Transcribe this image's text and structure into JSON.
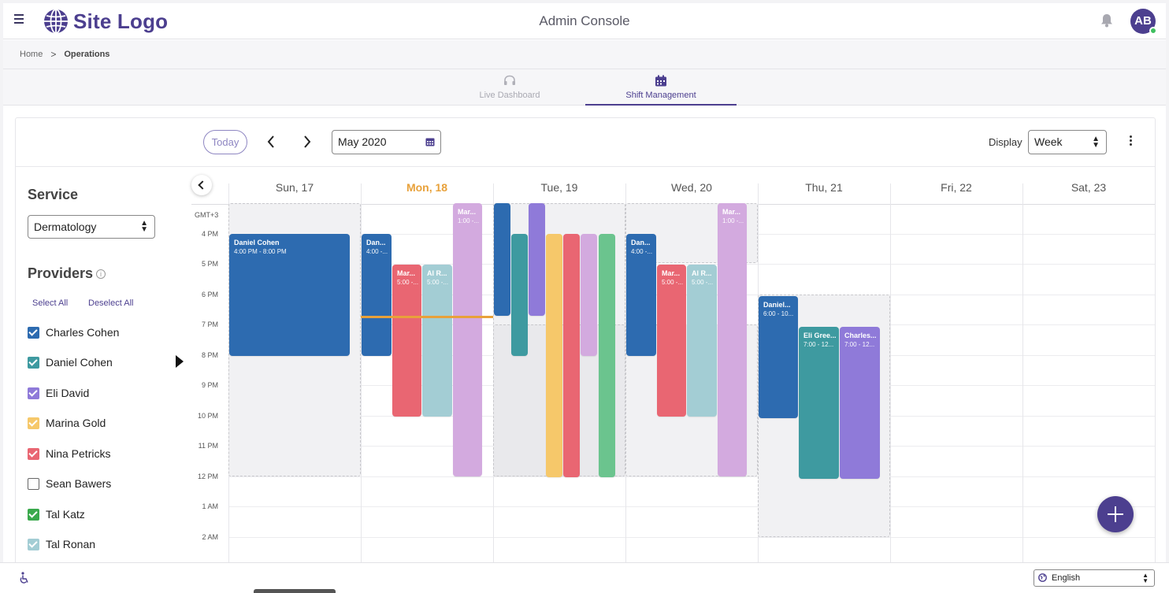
{
  "header": {
    "logo_text": "Site Logo",
    "title": "Admin Console",
    "avatar_initials": "AB",
    "icons": [
      "menu-icon",
      "globe-icon",
      "bell-icon"
    ]
  },
  "breadcrumb": {
    "home": "Home",
    "separator": ">",
    "current": "Operations"
  },
  "tabs": [
    {
      "label": "Live Dashboard",
      "icon": "headset-icon",
      "active": false
    },
    {
      "label": "Shift Management",
      "icon": "calendar-icon",
      "active": true
    }
  ],
  "toolbar": {
    "today_label": "Today",
    "date_value": "May 2020",
    "display_label": "Display",
    "display_value": "Week"
  },
  "sidebar": {
    "service_heading": "Service",
    "service_value": "Dermatology",
    "providers_heading": "Providers",
    "select_all": "Select All",
    "deselect_all": "Deselect All",
    "providers": [
      {
        "name": "Charles Cohen",
        "color": "#2d6bb0",
        "checked": true
      },
      {
        "name": "Daniel Cohen",
        "color": "#3e9aa0",
        "checked": true
      },
      {
        "name": "Eli David",
        "color": "#8f7ad9",
        "checked": true
      },
      {
        "name": "Marina Gold",
        "color": "#f6c86a",
        "checked": true
      },
      {
        "name": "Nina Petricks",
        "color": "#e96672",
        "checked": true
      },
      {
        "name": "Sean Bawers",
        "color": "#ffffff",
        "checked": false
      },
      {
        "name": "Tal Katz",
        "color": "#3aa94c",
        "checked": true
      },
      {
        "name": "Tal Ronan",
        "color": "#a3cdd4",
        "checked": true
      }
    ]
  },
  "calendar": {
    "timezone": "GMT+3",
    "days": [
      {
        "label": "Sun, 17",
        "today": false
      },
      {
        "label": "Mon, 18",
        "today": true
      },
      {
        "label": "Tue, 19",
        "today": false
      },
      {
        "label": "Wed, 20",
        "today": false
      },
      {
        "label": "Thu, 21",
        "today": false
      },
      {
        "label": "Fri, 22",
        "today": false
      },
      {
        "label": "Sat, 23",
        "today": false
      }
    ],
    "hours": [
      "4 PM",
      "5 PM",
      "6 PM",
      "7 PM",
      "8 PM",
      "9 PM",
      "10 PM",
      "11 PM",
      "12 PM",
      "1 AM",
      "2 AM"
    ],
    "events": [
      {
        "name": "Daniel Cohen",
        "time": "4:00 PM - 8:00 PM"
      },
      {
        "name": "Dan...",
        "time": "4:00 -..."
      },
      {
        "name": "Mar...",
        "time": "5:00 -..."
      },
      {
        "name": "Al R...",
        "time": "5:00 -..."
      },
      {
        "name": "Mar...",
        "time": "1:00 -..."
      },
      {
        "name": "Dan...",
        "time": "4:00 -..."
      },
      {
        "name": "Mar...",
        "time": "5:00 -..."
      },
      {
        "name": "Al R...",
        "time": "5:00 -..."
      },
      {
        "name": "Mar...",
        "time": "1:00 -..."
      },
      {
        "name": "Daniel...",
        "time": "6:00 - 10..."
      },
      {
        "name": "Eli Gree...",
        "time": "7:00 - 12..."
      },
      {
        "name": "Charles...",
        "time": "7:00 - 12..."
      }
    ]
  },
  "footer": {
    "language": "English"
  },
  "colors": {
    "brand": "#4c3f8f",
    "today": "#e8a13a",
    "event_blue": "#2d6bb0",
    "event_teal": "#3e9aa0",
    "event_purple": "#8f7ad9",
    "event_red": "#e96672",
    "event_lightblue": "#a3cdd4",
    "event_lilac": "#d3aadf",
    "event_yellow": "#f6c86a",
    "event_green": "#6bc48e"
  }
}
